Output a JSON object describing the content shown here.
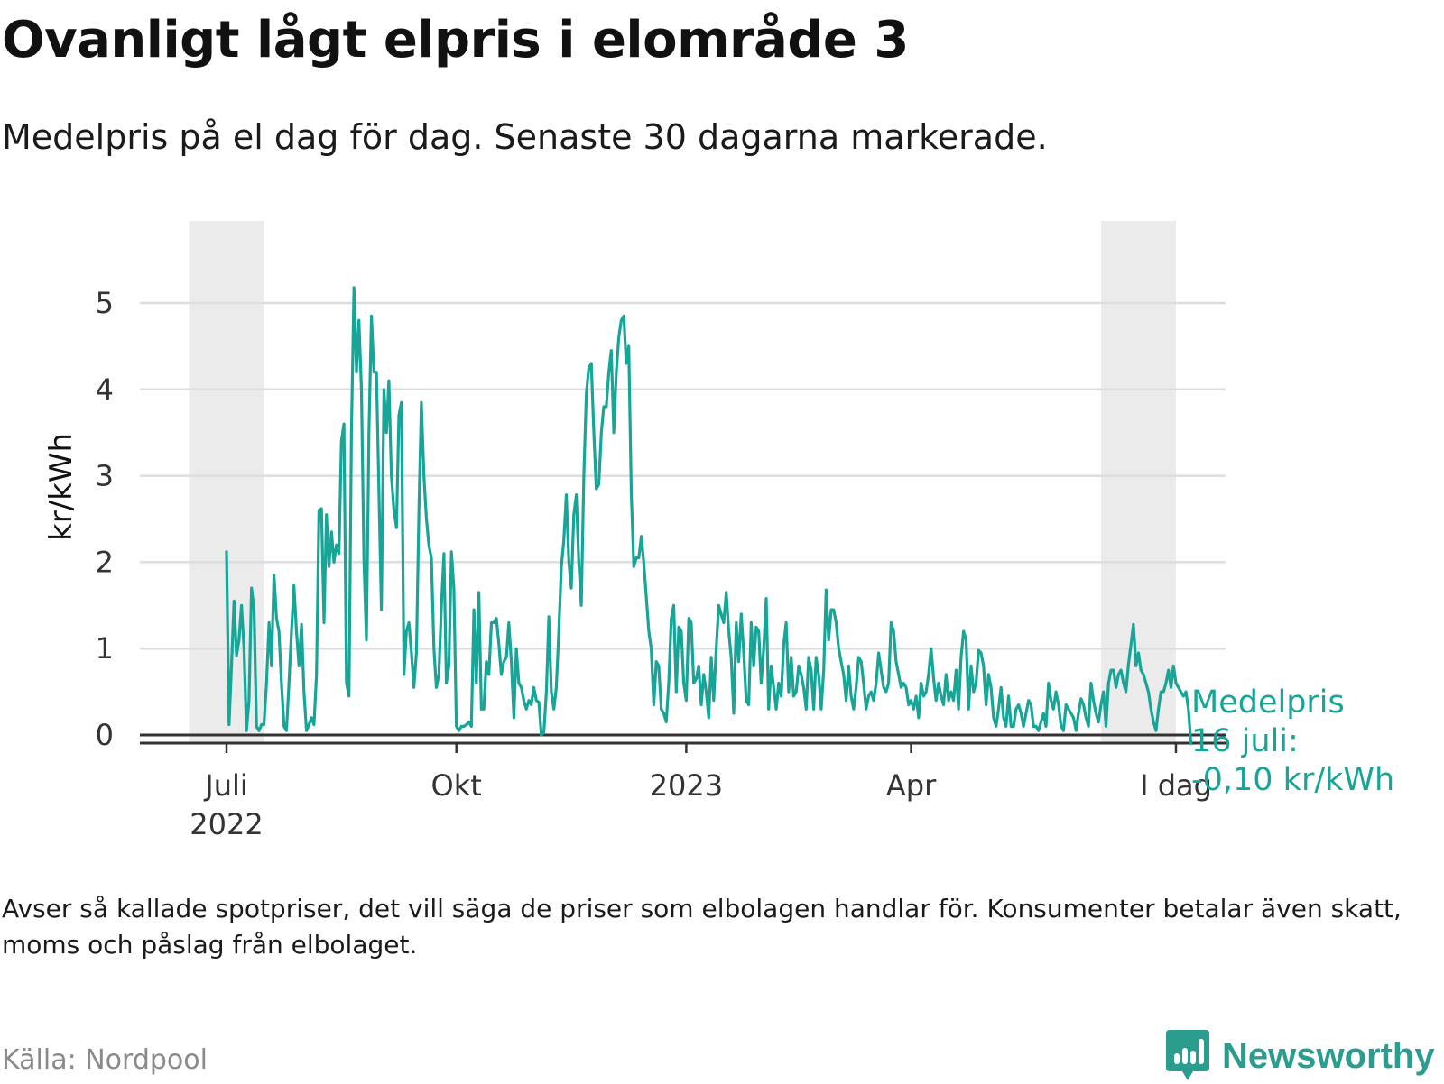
{
  "title": "Ovanligt lågt elpris i elområde 3",
  "subtitle": "Medelpris på el dag för dag.  Senaste 30 dagarna markerade.",
  "note": "Avser så kallade spotpriser, det vill säga de priser som elbolagen handlar för. Konsumenter betalar även skatt, moms och påslag från elbolaget.",
  "source": "Källa: Nordpool",
  "brand": {
    "name": "Newsworthy",
    "icon": "bar-chart-speech-bubble-icon",
    "color": "#2a9d8f"
  },
  "colors": {
    "line": "#17a597",
    "grid": "#dddddd",
    "band": "#ebebeb",
    "baseline": "#333333"
  },
  "chart_data": {
    "type": "line",
    "title": "Ovanligt lågt elpris i elområde 3",
    "ylabel": "kr/kWh",
    "xlabel": "",
    "ylim": [
      0,
      5
    ],
    "yticks": [
      0,
      1,
      2,
      3,
      4,
      5
    ],
    "xticks": [
      {
        "day": 0,
        "label": "Juli",
        "sub": "2022"
      },
      {
        "day": 92,
        "label": "Okt",
        "sub": ""
      },
      {
        "day": 184,
        "label": "2023",
        "sub": ""
      },
      {
        "day": 274,
        "label": "Apr",
        "sub": ""
      },
      {
        "day": 380,
        "label": "I dag",
        "sub": ""
      }
    ],
    "highlight_ranges": [
      [
        -15,
        15
      ],
      [
        350,
        380
      ]
    ],
    "x_domain": [
      -35,
      400
    ],
    "series": [
      {
        "name": "Medelpris",
        "x_start_day": 0,
        "values": [
          2.12,
          0.12,
          0.8,
          1.55,
          0.92,
          1.1,
          1.5,
          1.0,
          0.05,
          0.4,
          1.7,
          1.45,
          0.1,
          0.05,
          0.12,
          0.12,
          0.6,
          1.3,
          0.8,
          1.85,
          1.35,
          1.2,
          0.6,
          0.1,
          0.05,
          0.6,
          1.2,
          1.73,
          1.2,
          0.8,
          1.28,
          0.5,
          0.05,
          0.12,
          0.2,
          0.12,
          0.7,
          2.6,
          2.62,
          1.3,
          2.55,
          1.95,
          2.35,
          2.0,
          2.2,
          2.1,
          3.4,
          3.6,
          0.6,
          0.45,
          3.5,
          5.18,
          4.2,
          4.8,
          4.0,
          2.0,
          1.1,
          3.5,
          4.85,
          4.2,
          4.2,
          2.8,
          1.45,
          4.0,
          3.5,
          4.1,
          3.0,
          2.6,
          2.4,
          3.7,
          3.85,
          0.7,
          1.2,
          1.3,
          0.95,
          0.55,
          0.95,
          2.6,
          3.85,
          3.0,
          2.5,
          2.2,
          2.05,
          1.0,
          0.55,
          0.7,
          1.5,
          2.1,
          0.6,
          0.8,
          2.12,
          1.7,
          0.1,
          0.05,
          0.1,
          0.1,
          0.12,
          0.15,
          0.1,
          1.45,
          0.6,
          1.65,
          0.3,
          0.3,
          0.85,
          0.7,
          1.3,
          1.3,
          1.35,
          1.05,
          0.7,
          0.85,
          0.9,
          1.3,
          0.85,
          0.2,
          1.0,
          0.6,
          0.55,
          0.4,
          0.3,
          0.4,
          0.35,
          0.55,
          0.4,
          0.38,
          0.0,
          0.03,
          0.5,
          1.37,
          0.5,
          0.3,
          0.55,
          1.2,
          1.95,
          2.25,
          2.78,
          2.0,
          1.7,
          2.55,
          2.78,
          2.0,
          1.5,
          3.0,
          3.95,
          4.25,
          4.3,
          3.5,
          2.85,
          2.9,
          3.5,
          3.8,
          3.8,
          4.2,
          4.45,
          3.5,
          4.2,
          4.6,
          4.8,
          4.85,
          4.3,
          4.5,
          2.8,
          1.95,
          2.05,
          2.05,
          2.3,
          2.0,
          1.6,
          1.2,
          1.0,
          0.35,
          0.85,
          0.8,
          0.3,
          0.25,
          0.15,
          0.6,
          1.35,
          1.5,
          0.5,
          1.25,
          1.2,
          0.6,
          0.4,
          1.35,
          1.3,
          0.6,
          0.65,
          0.8,
          0.35,
          0.7,
          0.5,
          0.2,
          0.9,
          0.4,
          1.0,
          1.5,
          1.4,
          1.3,
          1.65,
          1.2,
          0.9,
          0.25,
          1.3,
          0.85,
          1.4,
          0.95,
          0.4,
          0.35,
          1.3,
          0.8,
          1.25,
          1.2,
          0.6,
          1.0,
          1.58,
          0.3,
          0.8,
          0.55,
          0.3,
          0.6,
          0.45,
          1.05,
          1.3,
          0.5,
          0.9,
          0.45,
          0.5,
          0.8,
          0.7,
          0.55,
          0.3,
          0.9,
          0.75,
          0.3,
          0.9,
          0.7,
          0.3,
          0.75,
          1.68,
          1.1,
          1.45,
          1.45,
          1.3,
          1.0,
          0.85,
          0.7,
          0.4,
          0.8,
          0.45,
          0.3,
          0.55,
          0.9,
          0.85,
          0.6,
          0.3,
          0.45,
          0.5,
          0.4,
          0.6,
          0.95,
          0.75,
          0.55,
          0.5,
          0.6,
          1.3,
          1.2,
          0.85,
          0.7,
          0.55,
          0.6,
          0.55,
          0.35,
          0.4,
          0.3,
          0.45,
          0.2,
          0.6,
          0.45,
          0.5,
          0.7,
          1.0,
          0.65,
          0.4,
          0.6,
          0.45,
          0.35,
          0.7,
          0.4,
          0.5,
          0.4,
          0.75,
          0.3,
          0.9,
          1.2,
          1.1,
          0.3,
          0.8,
          0.5,
          0.6,
          0.98,
          0.95,
          0.8,
          0.35,
          0.7,
          0.55,
          0.2,
          0.1,
          0.3,
          0.55,
          0.2,
          0.1,
          0.45,
          0.1,
          0.1,
          0.3,
          0.35,
          0.25,
          0.1,
          0.25,
          0.4,
          0.35,
          0.1,
          0.1,
          0.05,
          0.15,
          0.25,
          0.1,
          0.6,
          0.4,
          0.3,
          0.5,
          0.35,
          0.1,
          0.05,
          0.35,
          0.3,
          0.25,
          0.2,
          0.05,
          0.25,
          0.42,
          0.35,
          0.2,
          0.1,
          0.6,
          0.4,
          0.25,
          0.15,
          0.35,
          0.5,
          0.1,
          0.6,
          0.75,
          0.75,
          0.55,
          0.7,
          0.75,
          0.6,
          0.5,
          0.82,
          1.05,
          1.28,
          0.8,
          0.95,
          0.75,
          0.7,
          0.6,
          0.5,
          0.3,
          0.15,
          0.05,
          0.3,
          0.5,
          0.5,
          0.6,
          0.75,
          0.55,
          0.8,
          0.6,
          0.55,
          0.5,
          0.45,
          0.5,
          0.3,
          -0.1
        ]
      }
    ],
    "annotation": {
      "label": "Medelpris",
      "date": "16 juli:",
      "value": "-0,10 kr/kWh"
    }
  }
}
